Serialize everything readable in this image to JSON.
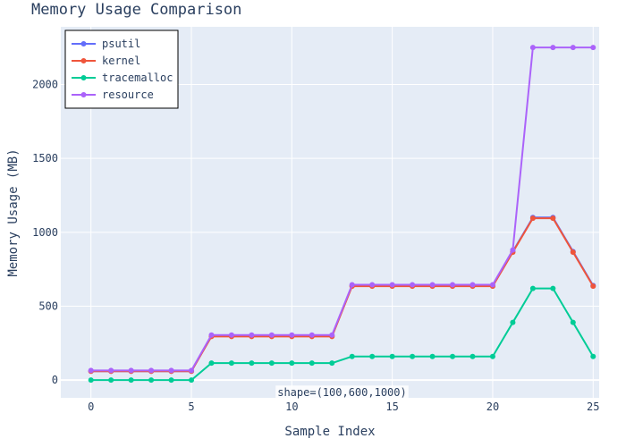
{
  "chart_data": {
    "type": "line",
    "title": "Memory Usage Comparison",
    "xlabel": "Sample Index",
    "ylabel": "Memory Usage (MB)",
    "xlim": [
      -1.5,
      25.3
    ],
    "ylim": [
      -120,
      2390
    ],
    "xticks": [
      0,
      5,
      10,
      15,
      20,
      25
    ],
    "yticks": [
      0,
      500,
      1000,
      1500,
      2000
    ],
    "grid": true,
    "legend_position": "top-left",
    "x": [
      0,
      1,
      2,
      3,
      4,
      5,
      6,
      7,
      8,
      9,
      10,
      11,
      12,
      13,
      14,
      15,
      16,
      17,
      18,
      19,
      20,
      21,
      22,
      23,
      24,
      25
    ],
    "series": [
      {
        "name": "psutil",
        "color": "#636efa",
        "values": [
          60,
          60,
          60,
          60,
          60,
          60,
          300,
          300,
          300,
          300,
          300,
          300,
          300,
          640,
          640,
          640,
          640,
          640,
          640,
          640,
          640,
          870,
          1100,
          1100,
          870,
          640
        ]
      },
      {
        "name": "kernel",
        "color": "#ef553b",
        "values": [
          60,
          60,
          60,
          60,
          60,
          60,
          295,
          295,
          295,
          295,
          295,
          295,
          295,
          635,
          635,
          635,
          635,
          635,
          635,
          635,
          635,
          865,
          1095,
          1095,
          865,
          635
        ]
      },
      {
        "name": "tracemalloc",
        "color": "#00cc96",
        "values": [
          0,
          0,
          0,
          0,
          0,
          0,
          115,
          115,
          115,
          115,
          115,
          115,
          115,
          160,
          160,
          160,
          160,
          160,
          160,
          160,
          160,
          390,
          620,
          620,
          390,
          160
        ]
      },
      {
        "name": "resource",
        "color": "#ab63fa",
        "values": [
          65,
          65,
          65,
          65,
          65,
          65,
          305,
          305,
          305,
          305,
          305,
          305,
          305,
          645,
          645,
          645,
          645,
          645,
          645,
          645,
          645,
          880,
          2250,
          2250,
          2250,
          2250
        ]
      }
    ],
    "annotations": [
      {
        "text": "shape=(100,600,1000)",
        "x": 12.5,
        "y": -85
      }
    ]
  }
}
